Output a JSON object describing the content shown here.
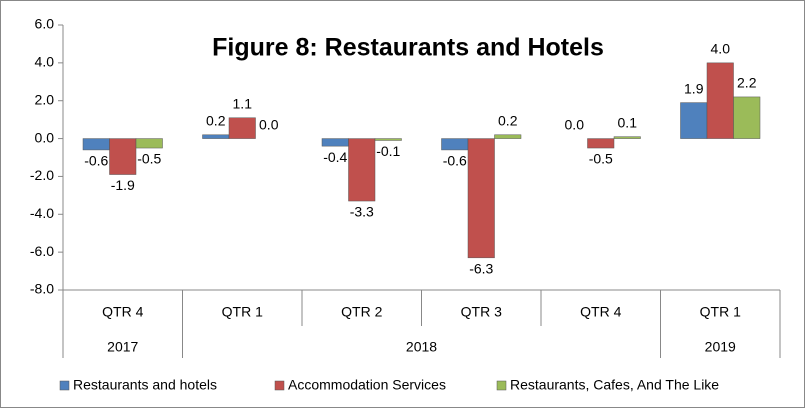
{
  "chart_data": {
    "type": "bar",
    "title": "Figure 8: Restaurants and Hotels",
    "categories": [
      "QTR 4",
      "QTR 1",
      "QTR 2",
      "QTR 3",
      "QTR 4",
      "QTR 1"
    ],
    "groups": [
      {
        "label": "2017",
        "count": 1
      },
      {
        "label": "2018",
        "count": 4
      },
      {
        "label": "2019",
        "count": 1
      }
    ],
    "series": [
      {
        "name": "Restaurants and hotels",
        "color": "#4f81bd",
        "values": [
          -0.6,
          0.2,
          -0.4,
          -0.6,
          0.0,
          1.9
        ],
        "value_labels": [
          "-0.6",
          "0.2",
          "-0.4",
          "-0.6",
          "0.0",
          "1.9"
        ]
      },
      {
        "name": "Accommodation Services",
        "color": "#c0504d",
        "values": [
          -1.9,
          1.1,
          -3.3,
          -6.3,
          -0.5,
          4.0
        ],
        "value_labels": [
          "-1.9",
          "1.1",
          "-3.3",
          "-6.3",
          "-0.5",
          "4.0"
        ]
      },
      {
        "name": "Restaurants, Cafes, And The Like",
        "color": "#9bbb59",
        "values": [
          -0.5,
          0.0,
          -0.1,
          0.2,
          0.1,
          2.2
        ],
        "value_labels": [
          "-0.5",
          "0.0",
          "-0.1",
          "0.2",
          "0.1",
          "2.2"
        ]
      }
    ],
    "ylim": [
      -8,
      6
    ],
    "yticks": [
      {
        "value": -8,
        "label": "-8.0"
      },
      {
        "value": -6,
        "label": "-6.0"
      },
      {
        "value": -4,
        "label": "-4.0"
      },
      {
        "value": -2,
        "label": "-2.0"
      },
      {
        "value": 0,
        "label": "0.0"
      },
      {
        "value": 2,
        "label": "2.0"
      },
      {
        "value": 4,
        "label": "4.0"
      },
      {
        "value": 6,
        "label": "6.0"
      }
    ],
    "grid": false,
    "legend": "bottom"
  }
}
